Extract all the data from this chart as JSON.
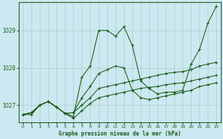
{
  "title": "Graphe pression niveau de la mer (hPa)",
  "bg_color": "#cce8f0",
  "grid_color": "#aacccc",
  "line_color": "#1a5c1a",
  "ylim": [
    1026.55,
    1029.75
  ],
  "xlim": [
    -0.5,
    23.5
  ],
  "yticks": [
    1027,
    1028,
    1029
  ],
  "xticks": [
    0,
    1,
    2,
    3,
    4,
    5,
    6,
    7,
    8,
    9,
    10,
    11,
    12,
    13,
    14,
    15,
    16,
    17,
    18,
    19,
    20,
    21,
    22,
    23
  ],
  "series": [
    [
      1026.75,
      1026.75,
      1027.0,
      1027.1,
      1026.95,
      1026.78,
      1026.7,
      1027.75,
      1028.05,
      1029.0,
      1029.0,
      1028.85,
      1029.1,
      1028.6,
      1027.65,
      1027.45,
      1027.3,
      1027.35,
      1027.35,
      1027.4,
      1028.1,
      1028.5,
      1029.2,
      1029.65
    ],
    [
      1026.75,
      1026.8,
      1027.0,
      1027.1,
      1026.95,
      1026.78,
      1026.8,
      1027.2,
      1027.5,
      1027.85,
      1027.95,
      1028.05,
      1028.0,
      1027.4,
      1027.2,
      1027.15,
      1027.2,
      1027.25,
      1027.3,
      1027.35,
      1027.4,
      1027.5,
      1027.55,
      1027.6
    ],
    [
      1026.75,
      1026.8,
      1027.0,
      1027.1,
      1026.95,
      1026.78,
      1026.8,
      1027.0,
      1027.2,
      1027.45,
      1027.5,
      1027.55,
      1027.6,
      1027.65,
      1027.7,
      1027.75,
      1027.8,
      1027.85,
      1027.88,
      1027.9,
      1027.95,
      1028.05,
      1028.1,
      1028.15
    ],
    [
      1026.75,
      1026.8,
      1027.0,
      1027.1,
      1026.95,
      1026.78,
      1026.65,
      1026.85,
      1027.05,
      1027.2,
      1027.25,
      1027.3,
      1027.35,
      1027.4,
      1027.45,
      1027.48,
      1027.5,
      1027.55,
      1027.58,
      1027.6,
      1027.65,
      1027.7,
      1027.75,
      1027.8
    ]
  ]
}
